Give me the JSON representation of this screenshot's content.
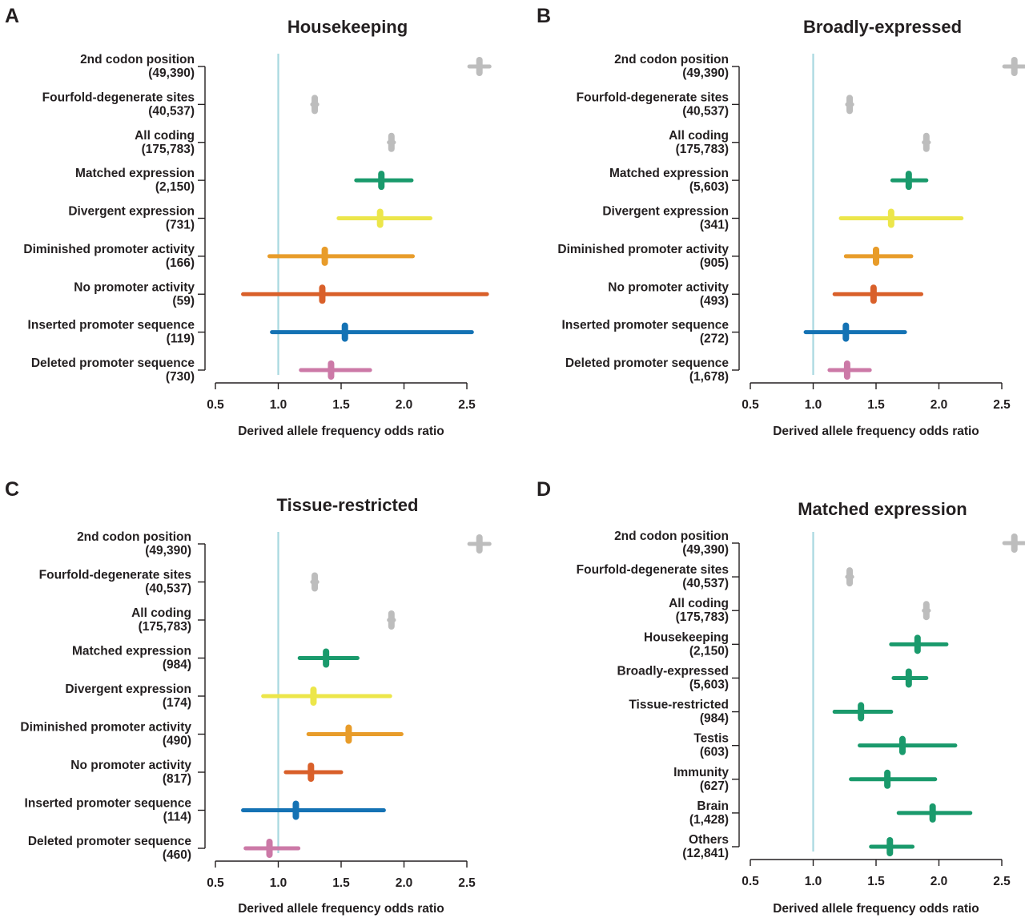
{
  "chart_data": [
    {
      "type": "forest",
      "panel_letter": "A",
      "title": "Housekeeping",
      "xlabel": "Derived allele frequency odds ratio",
      "xlim": [
        0.5,
        2.5
      ],
      "xticks": [
        "0.5",
        "1.0",
        "1.5",
        "2.0",
        "2.5"
      ],
      "reference_line": 1.0,
      "rows": [
        {
          "label": "2nd codon position",
          "n": "(49,390)",
          "estimate": 2.6,
          "low": 2.52,
          "high": 2.68,
          "color": "#bdbdbd"
        },
        {
          "label": "Fourfold-degenerate sites",
          "n": "(40,537)",
          "estimate": 1.29,
          "low": 1.27,
          "high": 1.31,
          "color": "#bdbdbd"
        },
        {
          "label": "All coding",
          "n": "(175,783)",
          "estimate": 1.9,
          "low": 1.88,
          "high": 1.92,
          "color": "#bdbdbd"
        },
        {
          "label": "Matched expression",
          "n": "(2,150)",
          "estimate": 1.82,
          "low": 1.62,
          "high": 2.06,
          "color": "#1a9a6c"
        },
        {
          "label": "Divergent expression",
          "n": "(731)",
          "estimate": 1.81,
          "low": 1.48,
          "high": 2.21,
          "color": "#ece64a"
        },
        {
          "label": "Diminished promoter activity",
          "n": "(166)",
          "estimate": 1.37,
          "low": 0.93,
          "high": 2.07,
          "color": "#e89c2a"
        },
        {
          "label": "No promoter activity",
          "n": "(59)",
          "estimate": 1.35,
          "low": 0.72,
          "high": 2.66,
          "color": "#d9602a"
        },
        {
          "label": "Inserted promoter sequence",
          "n": "(119)",
          "estimate": 1.53,
          "low": 0.95,
          "high": 2.54,
          "color": "#1472b4"
        },
        {
          "label": "Deleted promoter sequence",
          "n": "(730)",
          "estimate": 1.42,
          "low": 1.18,
          "high": 1.73,
          "color": "#cc79a7"
        }
      ]
    },
    {
      "type": "forest",
      "panel_letter": "B",
      "title": "Broadly-expressed",
      "xlabel": "Derived allele frequency odds ratio",
      "xlim": [
        0.5,
        2.5
      ],
      "xticks": [
        "0.5",
        "1.0",
        "1.5",
        "2.0",
        "2.5"
      ],
      "reference_line": 1.0,
      "rows": [
        {
          "label": "2nd codon position",
          "n": "(49,390)",
          "estimate": 2.6,
          "low": 2.52,
          "high": 2.68,
          "color": "#bdbdbd"
        },
        {
          "label": "Fourfold-degenerate sites",
          "n": "(40,537)",
          "estimate": 1.29,
          "low": 1.27,
          "high": 1.31,
          "color": "#bdbdbd"
        },
        {
          "label": "All coding",
          "n": "(175,783)",
          "estimate": 1.9,
          "low": 1.88,
          "high": 1.92,
          "color": "#bdbdbd"
        },
        {
          "label": "Matched expression",
          "n": "(5,603)",
          "estimate": 1.76,
          "low": 1.63,
          "high": 1.9,
          "color": "#1a9a6c"
        },
        {
          "label": "Divergent expression",
          "n": "(341)",
          "estimate": 1.62,
          "low": 1.22,
          "high": 2.18,
          "color": "#ece64a"
        },
        {
          "label": "Diminished promoter activity",
          "n": "(905)",
          "estimate": 1.5,
          "low": 1.26,
          "high": 1.78,
          "color": "#e89c2a"
        },
        {
          "label": "No promoter activity",
          "n": "(493)",
          "estimate": 1.48,
          "low": 1.17,
          "high": 1.86,
          "color": "#d9602a"
        },
        {
          "label": "Inserted promoter sequence",
          "n": "(272)",
          "estimate": 1.26,
          "low": 0.94,
          "high": 1.73,
          "color": "#1472b4"
        },
        {
          "label": "Deleted promoter sequence",
          "n": "(1,678)",
          "estimate": 1.27,
          "low": 1.13,
          "high": 1.45,
          "color": "#cc79a7"
        }
      ]
    },
    {
      "type": "forest",
      "panel_letter": "C",
      "title": "Tissue-restricted",
      "xlabel": "Derived allele frequency odds ratio",
      "xlim": [
        0.5,
        2.5
      ],
      "xticks": [
        "0.5",
        "1.0",
        "1.5",
        "2.0",
        "2.5"
      ],
      "reference_line": 1.0,
      "rows": [
        {
          "label": "2nd codon position",
          "n": "(49,390)",
          "estimate": 2.6,
          "low": 2.52,
          "high": 2.68,
          "color": "#bdbdbd"
        },
        {
          "label": "Fourfold-degenerate sites",
          "n": "(40,537)",
          "estimate": 1.29,
          "low": 1.27,
          "high": 1.31,
          "color": "#bdbdbd"
        },
        {
          "label": "All coding",
          "n": "(175,783)",
          "estimate": 1.9,
          "low": 1.88,
          "high": 1.92,
          "color": "#bdbdbd"
        },
        {
          "label": "Matched expression",
          "n": "(984)",
          "estimate": 1.38,
          "low": 1.17,
          "high": 1.63,
          "color": "#1a9a6c"
        },
        {
          "label": "Divergent expression",
          "n": "(174)",
          "estimate": 1.28,
          "low": 0.88,
          "high": 1.89,
          "color": "#ece64a"
        },
        {
          "label": "Diminished promoter activity",
          "n": "(490)",
          "estimate": 1.56,
          "low": 1.24,
          "high": 1.98,
          "color": "#e89c2a"
        },
        {
          "label": "No promoter activity",
          "n": "(817)",
          "estimate": 1.26,
          "low": 1.06,
          "high": 1.5,
          "color": "#d9602a"
        },
        {
          "label": "Inserted promoter sequence",
          "n": "(114)",
          "estimate": 1.14,
          "low": 0.72,
          "high": 1.84,
          "color": "#1472b4"
        },
        {
          "label": "Deleted promoter sequence",
          "n": "(460)",
          "estimate": 0.93,
          "low": 0.74,
          "high": 1.16,
          "color": "#cc79a7"
        }
      ]
    },
    {
      "type": "forest",
      "panel_letter": "D",
      "title": "Matched expression",
      "xlabel": "Derived allele frequency odds ratio",
      "xlim": [
        0.5,
        2.5
      ],
      "xticks": [
        "0.5",
        "1.0",
        "1.5",
        "2.0",
        "2.5"
      ],
      "reference_line": 1.0,
      "rows": [
        {
          "label": "2nd codon position",
          "n": "(49,390)",
          "estimate": 2.6,
          "low": 2.52,
          "high": 2.68,
          "color": "#bdbdbd"
        },
        {
          "label": "Fourfold-degenerate sites",
          "n": "(40,537)",
          "estimate": 1.29,
          "low": 1.27,
          "high": 1.31,
          "color": "#bdbdbd"
        },
        {
          "label": "All coding",
          "n": "(175,783)",
          "estimate": 1.9,
          "low": 1.88,
          "high": 1.92,
          "color": "#bdbdbd"
        },
        {
          "label": "Housekeeping",
          "n": "(2,150)",
          "estimate": 1.83,
          "low": 1.62,
          "high": 2.06,
          "color": "#1a9a6c"
        },
        {
          "label": "Broadly-expressed",
          "n": "(5,603)",
          "estimate": 1.76,
          "low": 1.64,
          "high": 1.9,
          "color": "#1a9a6c"
        },
        {
          "label": "Tissue-restricted",
          "n": "(984)",
          "estimate": 1.38,
          "low": 1.17,
          "high": 1.62,
          "color": "#1a9a6c"
        },
        {
          "label": "Testis",
          "n": "(603)",
          "estimate": 1.71,
          "low": 1.37,
          "high": 2.13,
          "color": "#1a9a6c"
        },
        {
          "label": "Immunity",
          "n": "(627)",
          "estimate": 1.59,
          "low": 1.3,
          "high": 1.97,
          "color": "#1a9a6c"
        },
        {
          "label": "Brain",
          "n": "(1,428)",
          "estimate": 1.95,
          "low": 1.68,
          "high": 2.25,
          "color": "#1a9a6c"
        },
        {
          "label": "Others",
          "n": "(12,841)",
          "estimate": 1.61,
          "low": 1.46,
          "high": 1.79,
          "color": "#1a9a6c"
        }
      ]
    }
  ],
  "style": {
    "reference_line_color": "#a8d8e0",
    "axis_color": "#231f20"
  }
}
